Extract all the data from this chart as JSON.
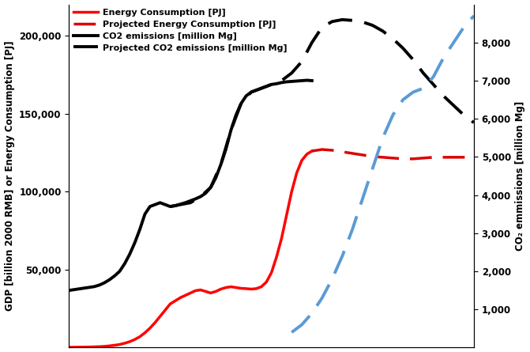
{
  "ylabel_left": "GDP [billion 2000 RMB] or Energy Consumption [PJ]",
  "ylabel_right": "CO₂ emmissions [million Mg]",
  "ylim_left": [
    0,
    220000
  ],
  "ylim_right": [
    0,
    9000
  ],
  "yticks_left": [
    50000,
    100000,
    150000,
    200000
  ],
  "yticks_right": [
    1000,
    2000,
    3000,
    4000,
    5000,
    6000,
    7000,
    8000
  ],
  "line_colors": {
    "energy_solid": "#ff0000",
    "energy_projected": "#dd0000",
    "co2_solid": "#000000",
    "co2_proj_black": "#000000",
    "co2_proj_blue": "#5b9bd5"
  },
  "energy_solid_x": [
    0,
    1,
    2,
    3,
    4,
    5,
    6,
    7,
    8,
    9,
    10,
    11,
    12,
    13,
    14,
    15,
    16,
    17,
    18,
    19,
    20,
    21,
    22,
    23,
    24,
    25,
    26,
    27,
    28,
    29,
    30,
    31,
    32,
    33,
    34,
    35,
    36,
    37,
    38,
    39,
    40,
    41,
    42,
    43,
    44,
    45,
    46,
    47,
    48
  ],
  "energy_solid_y": [
    200,
    250,
    300,
    350,
    400,
    500,
    600,
    800,
    1100,
    1500,
    2000,
    2800,
    3800,
    5200,
    7000,
    9500,
    12500,
    16000,
    20000,
    24000,
    28000,
    30000,
    32000,
    33500,
    35000,
    36500,
    37000,
    36000,
    35000,
    36000,
    37500,
    38500,
    39000,
    38500,
    38000,
    37800,
    37500,
    37800,
    39000,
    42000,
    48000,
    58000,
    70000,
    85000,
    100000,
    112000,
    120000,
    124000,
    126000
  ],
  "energy_proj_x": [
    48,
    50,
    52,
    54,
    56,
    58,
    60,
    62,
    64,
    66,
    68,
    70,
    72,
    74,
    76,
    78,
    80
  ],
  "energy_proj_y": [
    126000,
    127000,
    126500,
    125500,
    124500,
    123500,
    122500,
    122000,
    121500,
    121000,
    121000,
    121500,
    122000,
    122000,
    122000,
    122000,
    122000
  ],
  "co2_solid_x": [
    0,
    1,
    2,
    3,
    4,
    5,
    6,
    7,
    8,
    9,
    10,
    11,
    12,
    13,
    14,
    15,
    16,
    17,
    18,
    19,
    20,
    21,
    22,
    23,
    24,
    25,
    26,
    27,
    28,
    29,
    30,
    31,
    32,
    33,
    34,
    35,
    36,
    37,
    38,
    39,
    40,
    41,
    42,
    43,
    44,
    45,
    46,
    47,
    48
  ],
  "co2_solid_y": [
    1500,
    1520,
    1540,
    1560,
    1580,
    1600,
    1640,
    1700,
    1780,
    1880,
    2000,
    2200,
    2450,
    2750,
    3100,
    3500,
    3700,
    3750,
    3800,
    3750,
    3700,
    3720,
    3760,
    3800,
    3850,
    3900,
    3960,
    4050,
    4200,
    4450,
    4800,
    5200,
    5700,
    6100,
    6400,
    6600,
    6700,
    6750,
    6800,
    6850,
    6900,
    6920,
    6950,
    6970,
    6980,
    6990,
    7000,
    7010,
    7000
  ],
  "co2_proj_black_x": [
    20,
    22,
    24,
    26,
    28,
    30,
    32,
    34,
    36,
    38,
    40,
    42,
    44,
    46,
    48,
    50,
    52,
    54,
    56,
    58,
    60,
    62,
    64,
    66,
    68,
    70,
    72,
    74,
    76,
    78,
    80
  ],
  "co2_proj_black_y": [
    3700,
    3750,
    3800,
    3960,
    4200,
    4800,
    5700,
    6400,
    6700,
    6800,
    6900,
    7000,
    7200,
    7500,
    8000,
    8400,
    8550,
    8600,
    8580,
    8540,
    8450,
    8300,
    8100,
    7850,
    7550,
    7200,
    6900,
    6600,
    6350,
    6100,
    5900
  ],
  "co2_proj_blue_x": [
    44,
    46,
    48,
    50,
    52,
    54,
    56,
    58,
    60,
    62,
    64,
    66,
    68,
    70,
    72,
    74,
    76,
    78,
    80
  ],
  "co2_proj_blue_y": [
    400,
    600,
    900,
    1300,
    1800,
    2400,
    3100,
    3900,
    4700,
    5500,
    6100,
    6500,
    6700,
    6800,
    7100,
    7600,
    8000,
    8400,
    8700
  ]
}
